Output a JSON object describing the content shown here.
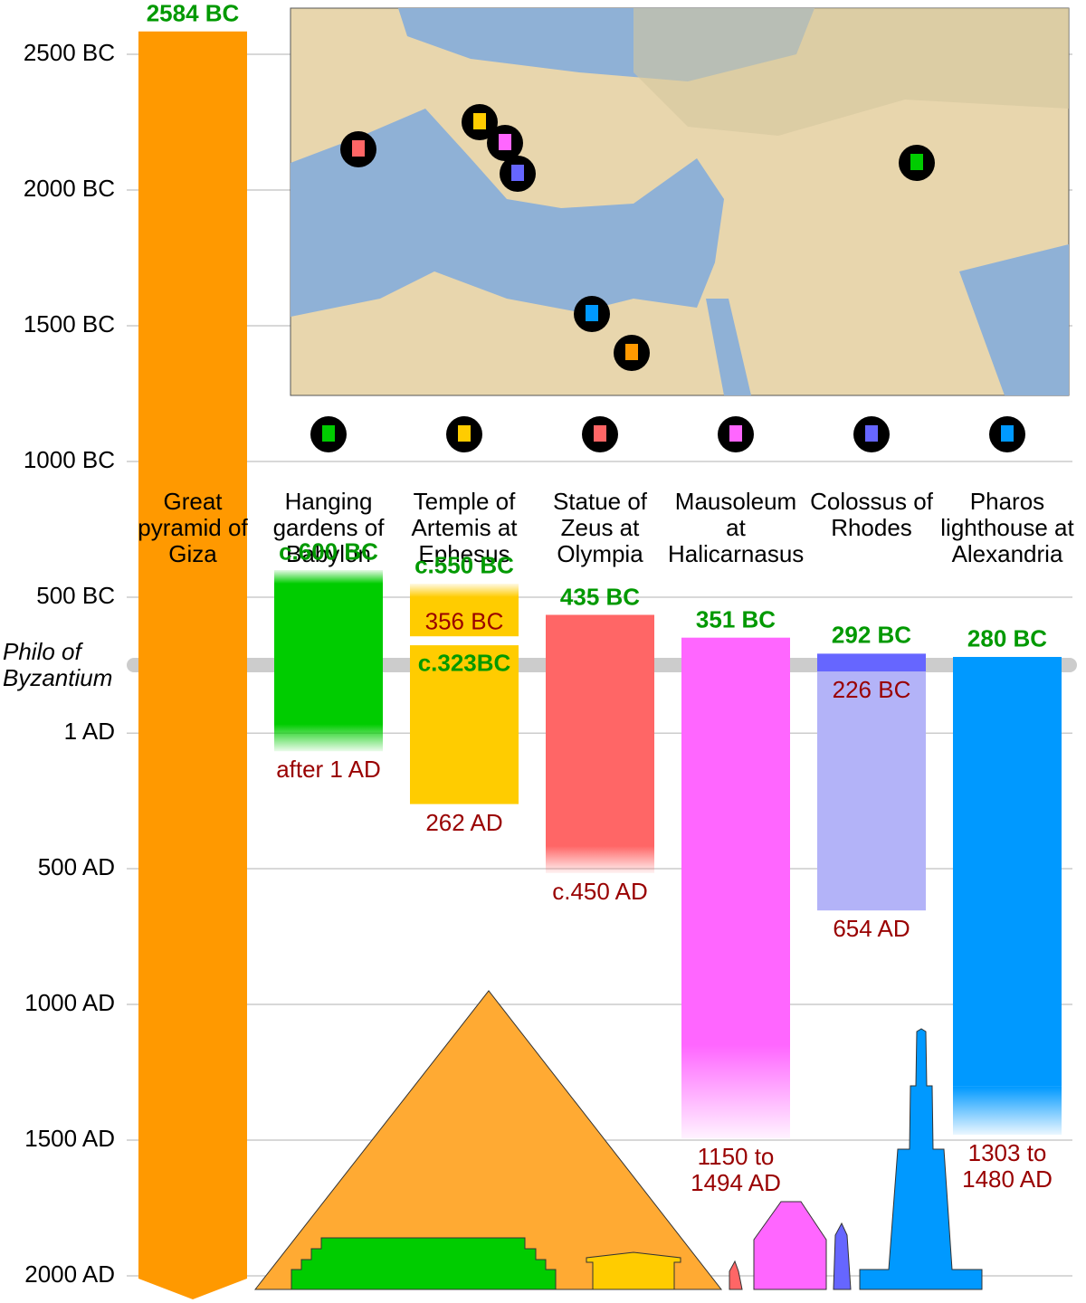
{
  "chart_data": {
    "type": "timeline",
    "ylim": [
      -2700,
      2100
    ],
    "yticks": [
      {
        "value": -2500,
        "label": "2500 BC"
      },
      {
        "value": -2000,
        "label": "2000 BC"
      },
      {
        "value": -1500,
        "label": "1500 BC"
      },
      {
        "value": -1000,
        "label": "1000 BC"
      },
      {
        "value": -500,
        "label": "500 BC"
      },
      {
        "value": 1,
        "label": "1 AD"
      },
      {
        "value": 500,
        "label": "500 AD"
      },
      {
        "value": 1000,
        "label": "1000 AD"
      },
      {
        "value": 1500,
        "label": "1500 AD"
      },
      {
        "value": 2000,
        "label": "2000 AD"
      }
    ],
    "grid": true,
    "reference_line": {
      "label": "Philo of Byzantium",
      "value": -250
    },
    "series": [
      {
        "name": "Great pyramid of Giza",
        "color": "#ff9900",
        "periods": [
          {
            "start": -2584,
            "start_label": "2584 BC",
            "end": null
          }
        ]
      },
      {
        "name": "Hanging gardens of Babylon",
        "color": "#00cc00",
        "periods": [
          {
            "start": -600,
            "start_label": "c.600 BC",
            "end": 1,
            "end_label": "after 1 AD",
            "fade_start": true,
            "fade_end": true
          }
        ]
      },
      {
        "name": "Temple of Artemis at Ephesus",
        "color": "#ffcc00",
        "periods": [
          {
            "start": -550,
            "start_label": "c.550 BC",
            "end": -356,
            "end_label": "356 BC",
            "fade_start": true
          },
          {
            "start": -323,
            "start_label": "c.323BC",
            "end": 262,
            "end_label": "262 AD"
          }
        ]
      },
      {
        "name": "Statue of Zeus at Olympia",
        "color": "#ff6666",
        "periods": [
          {
            "start": -435,
            "start_label": "435 BC",
            "end": 450,
            "end_label": "c.450 AD",
            "fade_end": true
          }
        ]
      },
      {
        "name": "Mausoleum at Halicarnasus",
        "color": "#ff66ff",
        "periods": [
          {
            "start": -351,
            "start_label": "351 BC",
            "end": [
              1150,
              1494
            ],
            "end_label": "1150 to 1494 AD"
          }
        ]
      },
      {
        "name": "Colossus of Rhodes",
        "color": "#6666ff",
        "periods": [
          {
            "start": -292,
            "start_label": "292 BC",
            "end": -226,
            "end_label": "226 BC",
            "color": "#6666ff"
          },
          {
            "start": -226,
            "end": 654,
            "end_label": "654 AD",
            "color": "#b3b3f8"
          }
        ]
      },
      {
        "name": "Pharos lighthouse at Alexandria",
        "color": "#0099ff",
        "periods": [
          {
            "start": -280,
            "start_label": "280 BC",
            "end": [
              1303,
              1480
            ],
            "end_label": "1303 to 1480 AD"
          }
        ]
      }
    ]
  }
}
